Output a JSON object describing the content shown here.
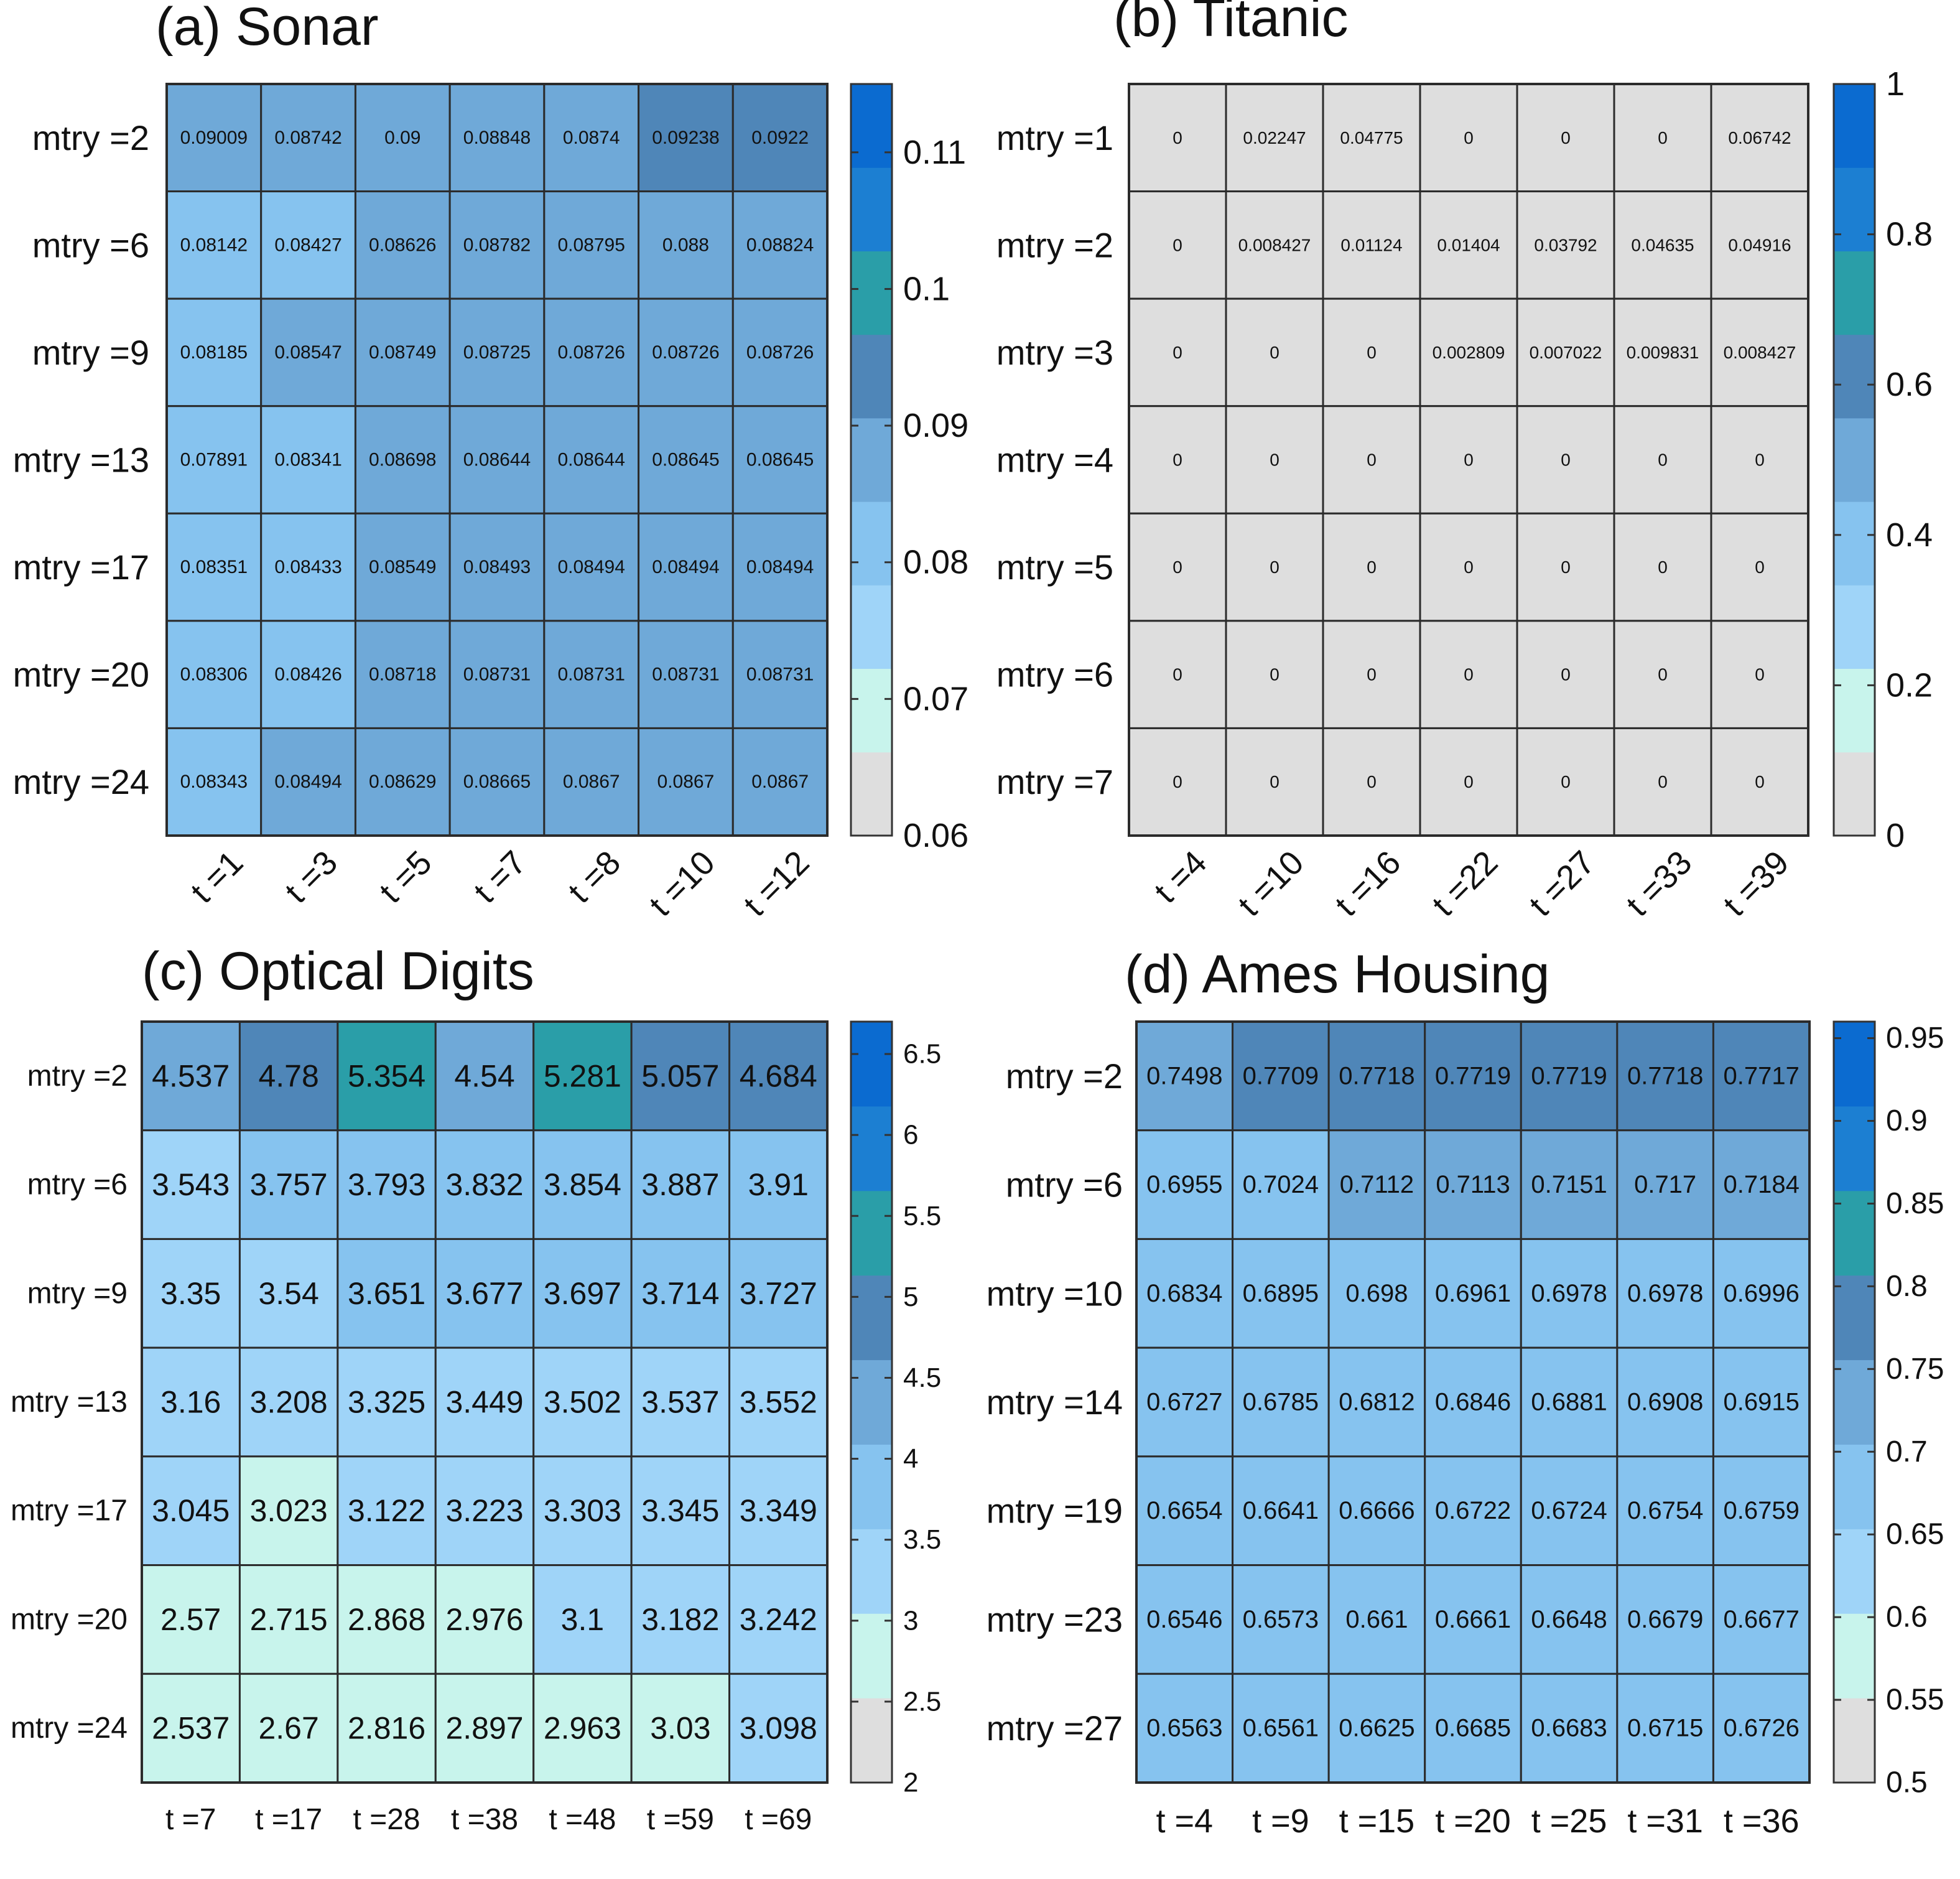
{
  "colormap": {
    "bins": [
      "#dedede",
      "#c8f4ec",
      "#9fd4f8",
      "#86c3ef",
      "#6fa9d8",
      "#4f86b8",
      "#2a9ea8",
      "#1c7fd2",
      "#0b6bd0"
    ],
    "grid_color": "#2b2b2b"
  },
  "chart_data": [
    {
      "type": "heatmap",
      "title": "(a) Sonar",
      "x": [
        "t =1",
        "t =3",
        "t =5",
        "t =7",
        "t =8",
        "t =10",
        "t =12"
      ],
      "y": [
        "mtry =2",
        "mtry =6",
        "mtry =9",
        "mtry =13",
        "mtry =17",
        "mtry =20",
        "mtry =24"
      ],
      "values": [
        [
          "0.09009",
          "0.08742",
          "0.09",
          "0.08848",
          "0.0874",
          "0.09238",
          "0.0922"
        ],
        [
          "0.08142",
          "0.08427",
          "0.08626",
          "0.08782",
          "0.08795",
          "0.088",
          "0.08824"
        ],
        [
          "0.08185",
          "0.08547",
          "0.08749",
          "0.08725",
          "0.08726",
          "0.08726",
          "0.08726"
        ],
        [
          "0.07891",
          "0.08341",
          "0.08698",
          "0.08644",
          "0.08644",
          "0.08645",
          "0.08645"
        ],
        [
          "0.08351",
          "0.08433",
          "0.08549",
          "0.08493",
          "0.08494",
          "0.08494",
          "0.08494"
        ],
        [
          "0.08306",
          "0.08426",
          "0.08718",
          "0.08731",
          "0.08731",
          "0.08731",
          "0.08731"
        ],
        [
          "0.08343",
          "0.08494",
          "0.08629",
          "0.08665",
          "0.0867",
          "0.0867",
          "0.0867"
        ]
      ],
      "color_range": [
        0.06,
        0.115
      ],
      "colorbar_ticks": [
        "0.06",
        "0.07",
        "0.08",
        "0.09",
        "0.1",
        "0.11"
      ],
      "x_labels_rotated": true
    },
    {
      "type": "heatmap",
      "title": "(b) Titanic",
      "x": [
        "t =4",
        "t =10",
        "t =16",
        "t =22",
        "t =27",
        "t =33",
        "t =39"
      ],
      "y": [
        "mtry =1",
        "mtry =2",
        "mtry =3",
        "mtry =4",
        "mtry =5",
        "mtry =6",
        "mtry =7"
      ],
      "values": [
        [
          "0",
          "0.02247",
          "0.04775",
          "0",
          "0",
          "0",
          "0.06742"
        ],
        [
          "0",
          "0.008427",
          "0.01124",
          "0.01404",
          "0.03792",
          "0.04635",
          "0.04916"
        ],
        [
          "0",
          "0",
          "0",
          "0.002809",
          "0.007022",
          "0.009831",
          "0.008427"
        ],
        [
          "0",
          "0",
          "0",
          "0",
          "0",
          "0",
          "0"
        ],
        [
          "0",
          "0",
          "0",
          "0",
          "0",
          "0",
          "0"
        ],
        [
          "0",
          "0",
          "0",
          "0",
          "0",
          "0",
          "0"
        ],
        [
          "0",
          "0",
          "0",
          "0",
          "0",
          "0",
          "0"
        ]
      ],
      "color_range": [
        0,
        1
      ],
      "colorbar_ticks": [
        "0",
        "0.2",
        "0.4",
        "0.6",
        "0.8",
        "1"
      ],
      "x_labels_rotated": true
    },
    {
      "type": "heatmap",
      "title": "(c) Optical Digits",
      "x": [
        "t =7",
        "t =17",
        "t =28",
        "t =38",
        "t =48",
        "t =59",
        "t =69"
      ],
      "y": [
        "mtry =2",
        "mtry =6",
        "mtry =9",
        "mtry =13",
        "mtry =17",
        "mtry =20",
        "mtry =24"
      ],
      "values": [
        [
          "4.537",
          "4.78",
          "5.354",
          "4.54",
          "5.281",
          "5.057",
          "4.684"
        ],
        [
          "3.543",
          "3.757",
          "3.793",
          "3.832",
          "3.854",
          "3.887",
          "3.91"
        ],
        [
          "3.35",
          "3.54",
          "3.651",
          "3.677",
          "3.697",
          "3.714",
          "3.727"
        ],
        [
          "3.16",
          "3.208",
          "3.325",
          "3.449",
          "3.502",
          "3.537",
          "3.552"
        ],
        [
          "3.045",
          "3.023",
          "3.122",
          "3.223",
          "3.303",
          "3.345",
          "3.349"
        ],
        [
          "2.57",
          "2.715",
          "2.868",
          "2.976",
          "3.1",
          "3.182",
          "3.242"
        ],
        [
          "2.537",
          "2.67",
          "2.816",
          "2.897",
          "2.963",
          "3.03",
          "3.098"
        ]
      ],
      "color_range": [
        2,
        6.7
      ],
      "colorbar_ticks": [
        "2",
        "2.5",
        "3",
        "3.5",
        "4",
        "4.5",
        "5",
        "5.5",
        "6",
        "6.5"
      ],
      "x_labels_rotated": false
    },
    {
      "type": "heatmap",
      "title": "(d) Ames Housing",
      "x": [
        "t =4",
        "t =9",
        "t =15",
        "t =20",
        "t =25",
        "t =31",
        "t =36"
      ],
      "y": [
        "mtry =2",
        "mtry =6",
        "mtry =10",
        "mtry =14",
        "mtry =19",
        "mtry =23",
        "mtry =27"
      ],
      "values": [
        [
          "0.7498",
          "0.7709",
          "0.7718",
          "0.7719",
          "0.7719",
          "0.7718",
          "0.7717"
        ],
        [
          "0.6955",
          "0.7024",
          "0.7112",
          "0.7113",
          "0.7151",
          "0.717",
          "0.7184"
        ],
        [
          "0.6834",
          "0.6895",
          "0.698",
          "0.6961",
          "0.6978",
          "0.6978",
          "0.6996"
        ],
        [
          "0.6727",
          "0.6785",
          "0.6812",
          "0.6846",
          "0.6881",
          "0.6908",
          "0.6915"
        ],
        [
          "0.6654",
          "0.6641",
          "0.6666",
          "0.6722",
          "0.6724",
          "0.6754",
          "0.6759"
        ],
        [
          "0.6546",
          "0.6573",
          "0.661",
          "0.6661",
          "0.6648",
          "0.6679",
          "0.6677"
        ],
        [
          "0.6563",
          "0.6561",
          "0.6625",
          "0.6685",
          "0.6683",
          "0.6715",
          "0.6726"
        ]
      ],
      "color_range": [
        0.5,
        0.96
      ],
      "colorbar_ticks": [
        "0.5",
        "0.55",
        "0.6",
        "0.65",
        "0.7",
        "0.75",
        "0.8",
        "0.85",
        "0.9",
        "0.95"
      ],
      "x_labels_rotated": false
    }
  ]
}
